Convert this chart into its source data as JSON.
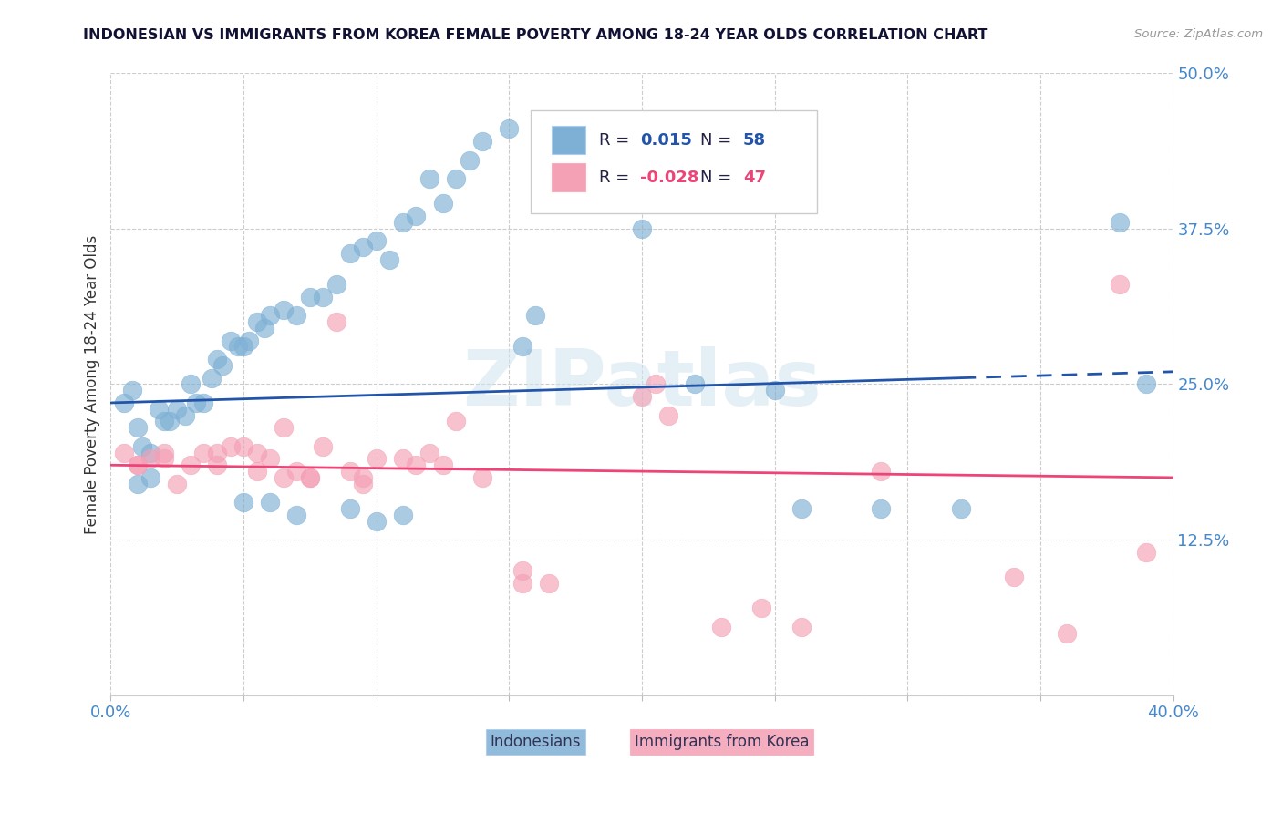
{
  "title": "INDONESIAN VS IMMIGRANTS FROM KOREA FEMALE POVERTY AMONG 18-24 YEAR OLDS CORRELATION CHART",
  "source": "Source: ZipAtlas.com",
  "ylabel": "Female Poverty Among 18-24 Year Olds",
  "xlim": [
    0.0,
    0.4
  ],
  "ylim": [
    0.0,
    0.5
  ],
  "yticks": [
    0.0,
    0.125,
    0.25,
    0.375,
    0.5
  ],
  "ytick_labels": [
    "",
    "12.5%",
    "25.0%",
    "37.5%",
    "50.0%"
  ],
  "xtick_labels": [
    "0.0%",
    "",
    "",
    "",
    "",
    "",
    "",
    "",
    "40.0%"
  ],
  "blue_color": "#7EB0D5",
  "pink_color": "#F4A0B5",
  "blue_line_color": "#2255AA",
  "pink_line_color": "#EE4477",
  "axis_label_color": "#4488CC",
  "watermark": "ZIPatlas",
  "blue_x": [
    0.005,
    0.008,
    0.01,
    0.012,
    0.015,
    0.018,
    0.02,
    0.022,
    0.025,
    0.028,
    0.03,
    0.032,
    0.035,
    0.038,
    0.04,
    0.042,
    0.045,
    0.048,
    0.05,
    0.052,
    0.055,
    0.058,
    0.06,
    0.065,
    0.07,
    0.075,
    0.08,
    0.085,
    0.09,
    0.095,
    0.1,
    0.105,
    0.11,
    0.115,
    0.12,
    0.125,
    0.13,
    0.135,
    0.14,
    0.15,
    0.155,
    0.16,
    0.2,
    0.22,
    0.25,
    0.26,
    0.29,
    0.32,
    0.38,
    0.39,
    0.01,
    0.015,
    0.05,
    0.06,
    0.07,
    0.09,
    0.1,
    0.11
  ],
  "blue_y": [
    0.235,
    0.245,
    0.215,
    0.2,
    0.195,
    0.23,
    0.22,
    0.22,
    0.23,
    0.225,
    0.25,
    0.235,
    0.235,
    0.255,
    0.27,
    0.265,
    0.285,
    0.28,
    0.28,
    0.285,
    0.3,
    0.295,
    0.305,
    0.31,
    0.305,
    0.32,
    0.32,
    0.33,
    0.355,
    0.36,
    0.365,
    0.35,
    0.38,
    0.385,
    0.415,
    0.395,
    0.415,
    0.43,
    0.445,
    0.455,
    0.28,
    0.305,
    0.375,
    0.25,
    0.245,
    0.15,
    0.15,
    0.15,
    0.38,
    0.25,
    0.17,
    0.175,
    0.155,
    0.155,
    0.145,
    0.15,
    0.14,
    0.145
  ],
  "pink_x": [
    0.005,
    0.01,
    0.015,
    0.02,
    0.025,
    0.03,
    0.035,
    0.04,
    0.045,
    0.05,
    0.055,
    0.06,
    0.065,
    0.07,
    0.075,
    0.08,
    0.085,
    0.09,
    0.095,
    0.1,
    0.11,
    0.12,
    0.125,
    0.13,
    0.14,
    0.155,
    0.155,
    0.165,
    0.2,
    0.205,
    0.21,
    0.23,
    0.245,
    0.26,
    0.29,
    0.34,
    0.36,
    0.38,
    0.39,
    0.01,
    0.02,
    0.04,
    0.055,
    0.065,
    0.075,
    0.095,
    0.115
  ],
  "pink_y": [
    0.195,
    0.185,
    0.19,
    0.195,
    0.17,
    0.185,
    0.195,
    0.195,
    0.2,
    0.2,
    0.195,
    0.19,
    0.215,
    0.18,
    0.175,
    0.2,
    0.3,
    0.18,
    0.17,
    0.19,
    0.19,
    0.195,
    0.185,
    0.22,
    0.175,
    0.1,
    0.09,
    0.09,
    0.24,
    0.25,
    0.225,
    0.055,
    0.07,
    0.055,
    0.18,
    0.095,
    0.05,
    0.33,
    0.115,
    0.185,
    0.19,
    0.185,
    0.18,
    0.175,
    0.175,
    0.175,
    0.185
  ],
  "blue_trend_x0": 0.0,
  "blue_trend_y0": 0.235,
  "blue_trend_x1": 0.4,
  "blue_trend_y1": 0.26,
  "blue_trend_dash_x": 0.32,
  "pink_trend_x0": 0.0,
  "pink_trend_y0": 0.185,
  "pink_trend_x1": 0.4,
  "pink_trend_y1": 0.175
}
